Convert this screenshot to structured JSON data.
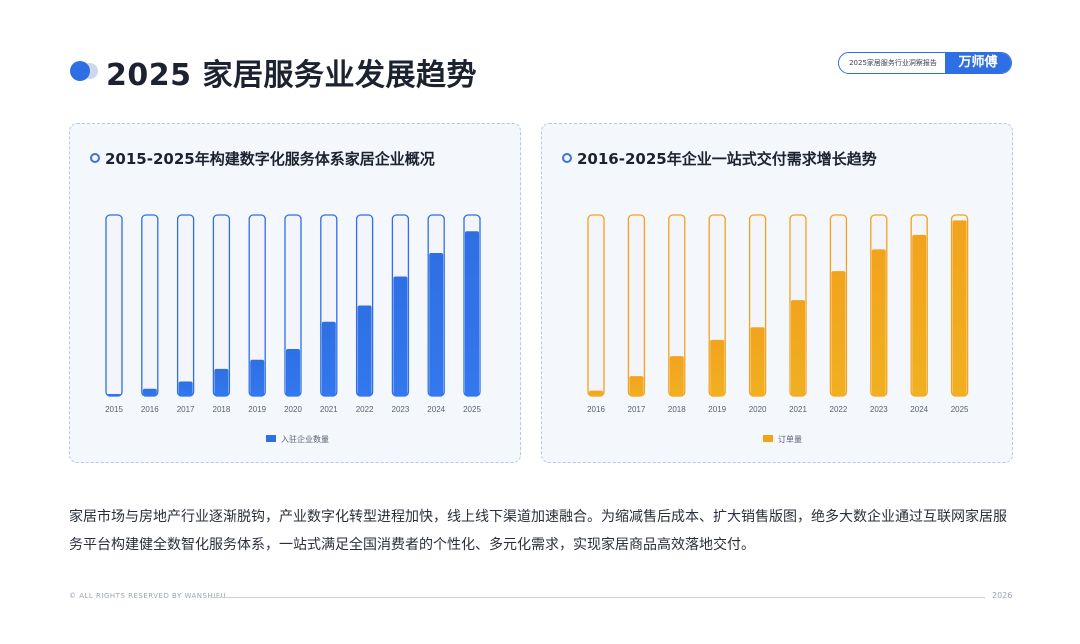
{
  "header": {
    "title": "2025 家居服务业发展趋势",
    "brand_report": "2025家居服务行业洞察报告",
    "brand_logo": "万师傅"
  },
  "colors": {
    "blue": "#2f6fe4",
    "orange": "#f5a21a",
    "panel_bg": "#f4f7fc"
  },
  "chart_data": [
    {
      "type": "bar",
      "title": "2015-2025年构建数字化服务体系家居企业概况",
      "categories": [
        "2015",
        "2016",
        "2017",
        "2018",
        "2019",
        "2020",
        "2021",
        "2022",
        "2023",
        "2024",
        "2025"
      ],
      "series": [
        {
          "name": "入驻企业数量",
          "values": [
            1,
            4,
            8,
            15,
            20,
            26,
            41,
            50,
            66,
            79,
            91
          ]
        }
      ],
      "ylim": [
        0,
        100
      ],
      "legend_position": "bottom",
      "grid": false,
      "color": "#2f6fe4"
    },
    {
      "type": "bar",
      "title": "2016-2025年企业一站式交付需求增长趋势",
      "categories": [
        "2016",
        "2017",
        "2018",
        "2019",
        "2020",
        "2021",
        "2022",
        "2023",
        "2024",
        "2025"
      ],
      "series": [
        {
          "name": "订单量",
          "values": [
            3,
            11,
            22,
            31,
            38,
            53,
            69,
            81,
            89,
            97
          ]
        }
      ],
      "ylim": [
        0,
        100
      ],
      "legend_position": "bottom",
      "grid": false,
      "color": "#f5a21a"
    }
  ],
  "body_text": "家居市场与房地产行业逐渐脱钩，产业数字化转型进程加快，线上线下渠道加速融合。为缩减售后成本、扩大销售版图，绝多大数企业通过互联网家居服务平台构建健全数智化服务体系，一站式满足全国消费者的个性化、多元化需求，实现家居商品高效落地交付。",
  "footer": {
    "rights": "© ALL RIGHTS RESERVED BY WANSHIFU",
    "year": "2026"
  }
}
